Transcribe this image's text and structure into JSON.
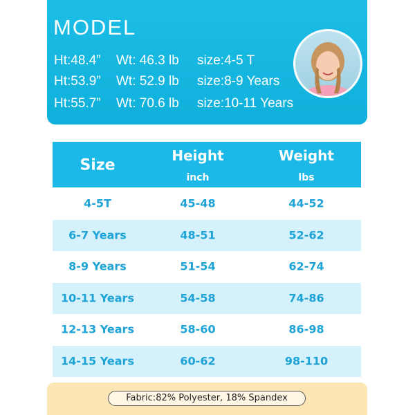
{
  "model": {
    "title": "MODEL",
    "rows": [
      [
        "Ht:48.4”",
        "Wt: 46.3 lb",
        "size:4-5 T"
      ],
      [
        "Ht:53.9”",
        "Wt: 52.9 lb",
        "size:8-9 Years"
      ],
      [
        "Ht:55.7”",
        "Wt: 70.6 lb",
        "size:10-11 Years"
      ]
    ]
  },
  "table": {
    "columns": [
      {
        "title": "Size"
      },
      {
        "title": "Height",
        "unit": "inch"
      },
      {
        "title": "Weight",
        "unit": "lbs"
      }
    ],
    "rows": [
      [
        "4-5T",
        "45-48",
        "44-52"
      ],
      [
        "6-7 Years",
        "48-51",
        "52-62"
      ],
      [
        "8-9 Years",
        "51-54",
        "62-74"
      ],
      [
        "10-11 Years",
        "54-58",
        "74-86"
      ],
      [
        "12-13 Years",
        "58-60",
        "86-98"
      ],
      [
        "14-15 Years",
        "60-62",
        "98-110"
      ]
    ]
  },
  "footer": {
    "fabric": "Fabric:82% Polyester, 18% Spandex"
  }
}
